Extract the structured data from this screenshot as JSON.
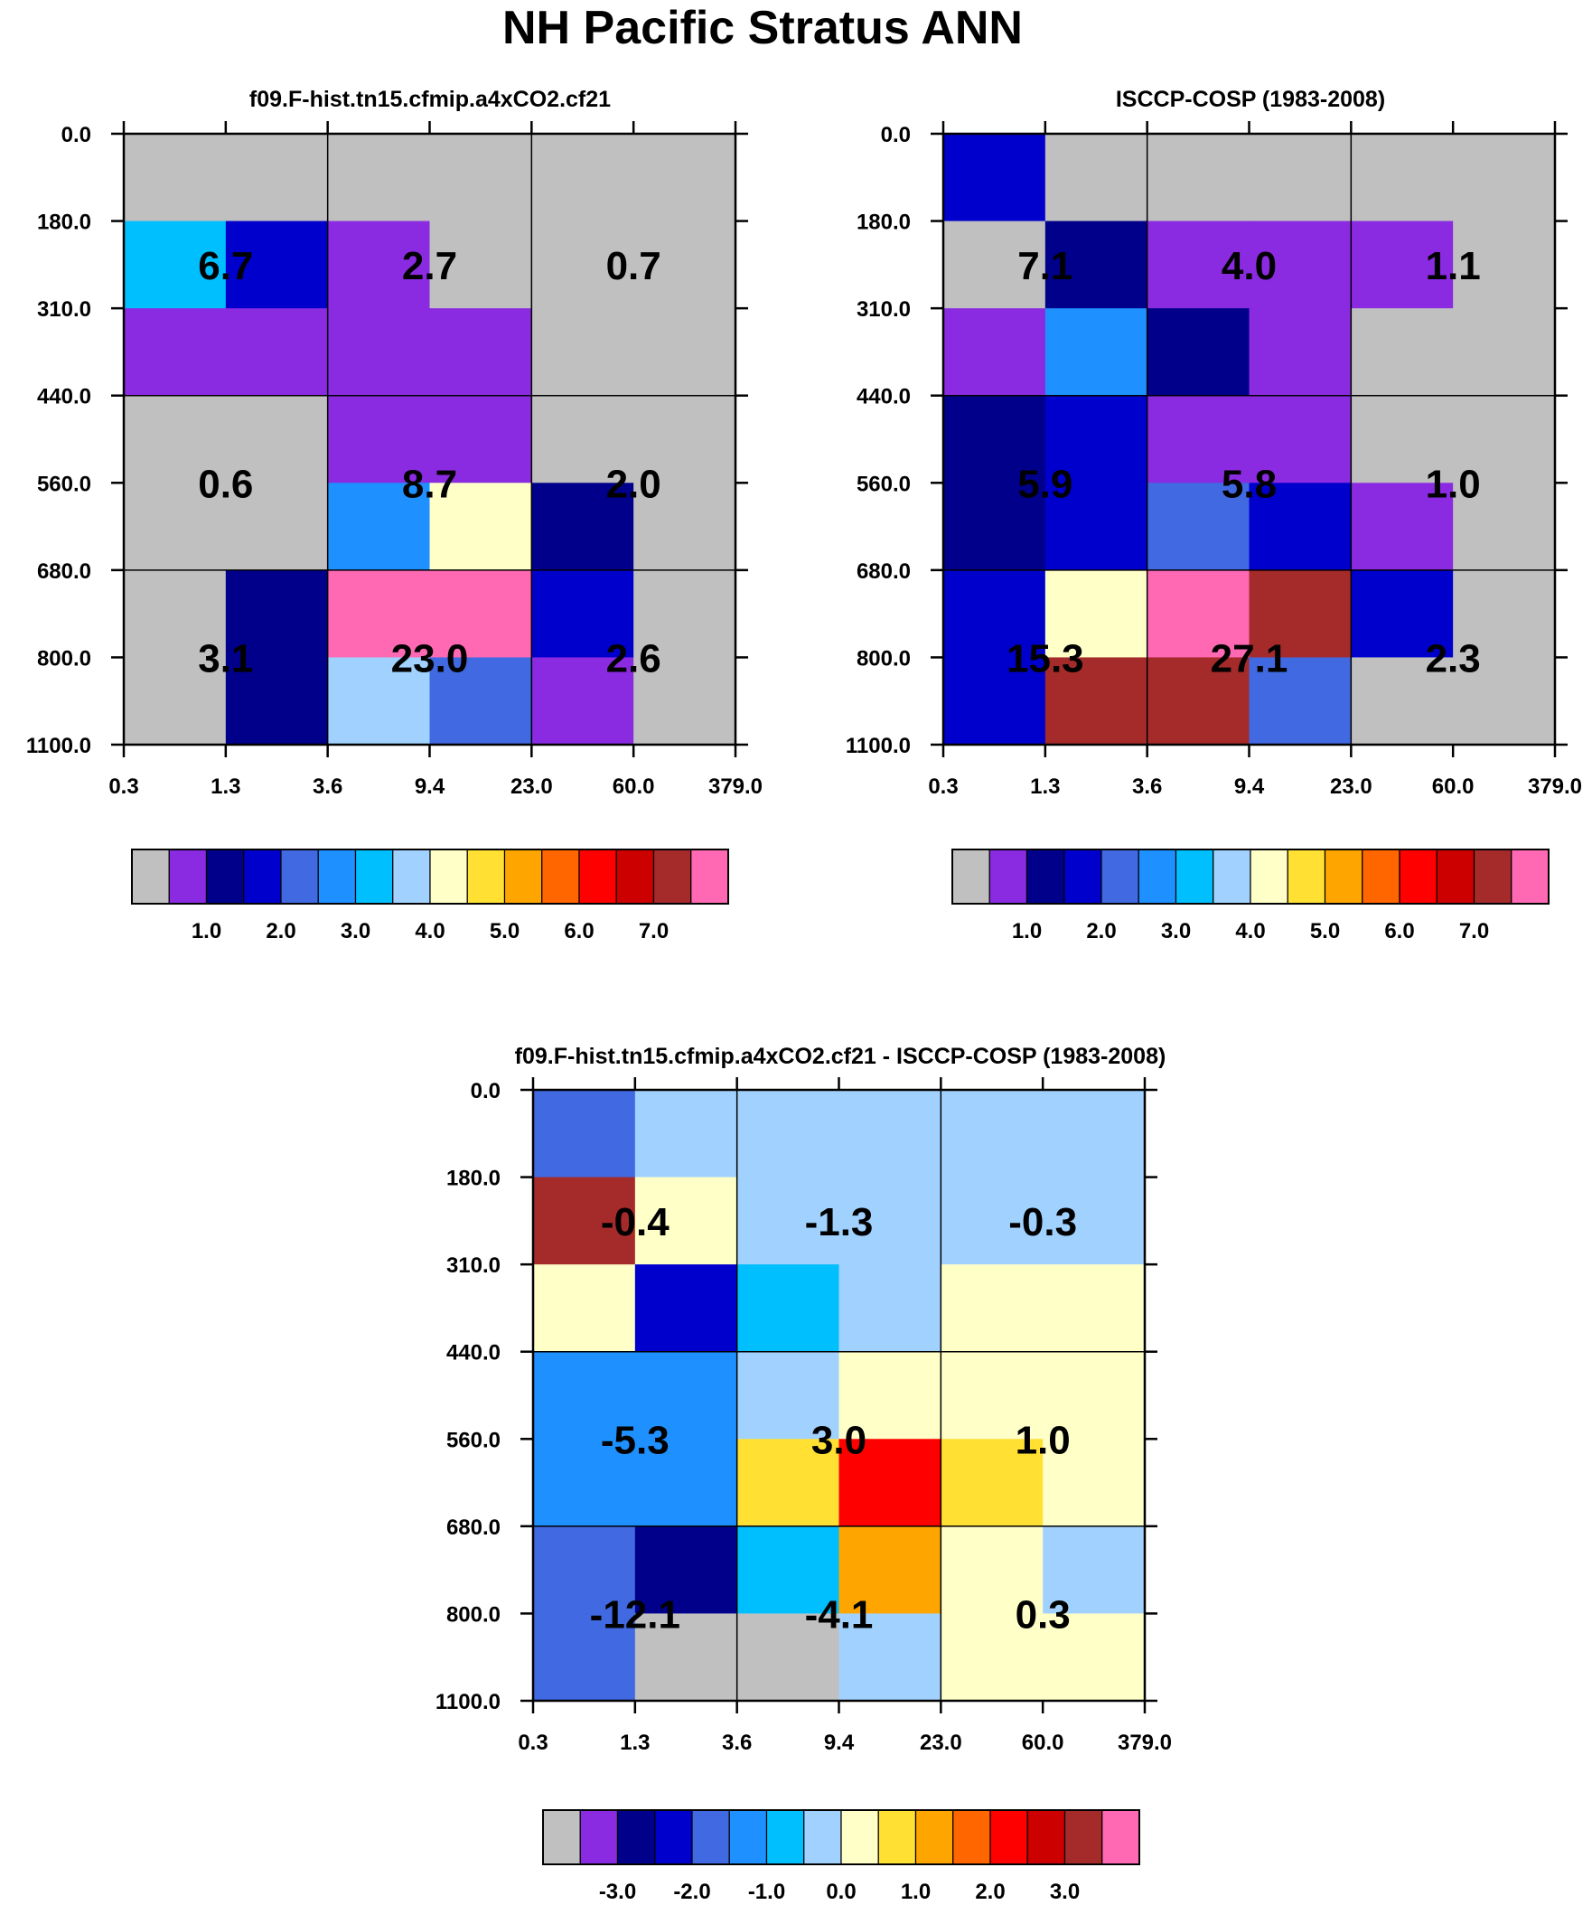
{
  "title": "NH Pacific Stratus ANN",
  "palette": [
    "#c0c0c0",
    "#8a2be2",
    "#00008b",
    "#0000cd",
    "#4169e1",
    "#1e90ff",
    "#00bfff",
    "#a1d2ff",
    "#ffffc8",
    "#ffe033",
    "#ffa500",
    "#ff6600",
    "#ff0000",
    "#cd0000",
    "#a52a2a",
    "#ff69b4"
  ],
  "chart_data": [
    {
      "type": "heatmap",
      "title": "f09.F-hist.tn15.cfmip.a4xCO2.cf21",
      "xticks": [
        "0.3",
        "1.3",
        "3.6",
        "9.4",
        "23.0",
        "60.0",
        "379.0"
      ],
      "yticks": [
        "0.0",
        "180.0",
        "310.0",
        "440.0",
        "560.0",
        "680.0",
        "800.0",
        "1100.0"
      ],
      "cells": [
        [
          0,
          0,
          0,
          0,
          0,
          0
        ],
        [
          6,
          3,
          1,
          0,
          0,
          0
        ],
        [
          1,
          1,
          1,
          1,
          0,
          0
        ],
        [
          0,
          0,
          1,
          1,
          0,
          0
        ],
        [
          0,
          0,
          5,
          8,
          2,
          0
        ],
        [
          0,
          2,
          15,
          15,
          3,
          0
        ],
        [
          0,
          2,
          7,
          4,
          1,
          0
        ]
      ],
      "labels": [
        {
          "value": "6.7",
          "col": 0,
          "row": 0
        },
        {
          "value": "2.7",
          "col": 1,
          "row": 0
        },
        {
          "value": "0.7",
          "col": 2,
          "row": 0
        },
        {
          "value": "0.6",
          "col": 0,
          "row": 1
        },
        {
          "value": "8.7",
          "col": 1,
          "row": 1
        },
        {
          "value": "2.0",
          "col": 2,
          "row": 1
        },
        {
          "value": "3.1",
          "col": 0,
          "row": 2
        },
        {
          "value": "23.0",
          "col": 1,
          "row": 2
        },
        {
          "value": "2.6",
          "col": 2,
          "row": 2
        }
      ],
      "colorbar": {
        "labels": [
          "1.0",
          "2.0",
          "3.0",
          "4.0",
          "5.0",
          "6.0",
          "7.0"
        ]
      }
    },
    {
      "type": "heatmap",
      "title": "ISCCP-COSP (1983-2008)",
      "xticks": [
        "0.3",
        "1.3",
        "3.6",
        "9.4",
        "23.0",
        "60.0",
        "379.0"
      ],
      "yticks": [
        "0.0",
        "180.0",
        "310.0",
        "440.0",
        "560.0",
        "680.0",
        "800.0",
        "1100.0"
      ],
      "cells": [
        [
          3,
          0,
          0,
          0,
          0,
          0
        ],
        [
          0,
          2,
          1,
          1,
          1,
          0
        ],
        [
          1,
          5,
          2,
          1,
          0,
          0
        ],
        [
          2,
          3,
          1,
          1,
          0,
          0
        ],
        [
          2,
          3,
          4,
          3,
          1,
          0
        ],
        [
          3,
          8,
          15,
          14,
          3,
          0
        ],
        [
          3,
          14,
          14,
          4,
          0,
          0
        ]
      ],
      "labels": [
        {
          "value": "7.1",
          "col": 0,
          "row": 0
        },
        {
          "value": "4.0",
          "col": 1,
          "row": 0
        },
        {
          "value": "1.1",
          "col": 2,
          "row": 0
        },
        {
          "value": "5.9",
          "col": 0,
          "row": 1
        },
        {
          "value": "5.8",
          "col": 1,
          "row": 1
        },
        {
          "value": "1.0",
          "col": 2,
          "row": 1
        },
        {
          "value": "15.3",
          "col": 0,
          "row": 2
        },
        {
          "value": "27.1",
          "col": 1,
          "row": 2
        },
        {
          "value": "2.3",
          "col": 2,
          "row": 2
        }
      ],
      "colorbar": {
        "labels": [
          "1.0",
          "2.0",
          "3.0",
          "4.0",
          "5.0",
          "6.0",
          "7.0"
        ]
      }
    },
    {
      "type": "heatmap",
      "title": "f09.F-hist.tn15.cfmip.a4xCO2.cf21 - ISCCP-COSP (1983-2008)",
      "xticks": [
        "0.3",
        "1.3",
        "3.6",
        "9.4",
        "23.0",
        "60.0",
        "379.0"
      ],
      "yticks": [
        "0.0",
        "180.0",
        "310.0",
        "440.0",
        "560.0",
        "680.0",
        "800.0",
        "1100.0"
      ],
      "cells": [
        [
          4,
          7,
          7,
          7,
          7,
          7
        ],
        [
          14,
          8,
          7,
          7,
          7,
          7
        ],
        [
          8,
          3,
          6,
          7,
          8,
          8
        ],
        [
          5,
          5,
          7,
          8,
          8,
          8
        ],
        [
          5,
          5,
          9,
          12,
          9,
          8
        ],
        [
          4,
          2,
          6,
          10,
          8,
          7
        ],
        [
          4,
          0,
          0,
          7,
          8,
          8
        ]
      ],
      "labels": [
        {
          "value": "-0.4",
          "col": 0,
          "row": 0
        },
        {
          "value": "-1.3",
          "col": 1,
          "row": 0
        },
        {
          "value": "-0.3",
          "col": 2,
          "row": 0
        },
        {
          "value": "-5.3",
          "col": 0,
          "row": 1
        },
        {
          "value": "3.0",
          "col": 1,
          "row": 1
        },
        {
          "value": "1.0",
          "col": 2,
          "row": 1
        },
        {
          "value": "-12.1",
          "col": 0,
          "row": 2
        },
        {
          "value": "-4.1",
          "col": 1,
          "row": 2
        },
        {
          "value": "0.3",
          "col": 2,
          "row": 2
        }
      ],
      "colorbar": {
        "labels": [
          "-3.0",
          "-2.0",
          "-1.0",
          "0.0",
          "1.0",
          "2.0",
          "3.0"
        ]
      }
    }
  ]
}
